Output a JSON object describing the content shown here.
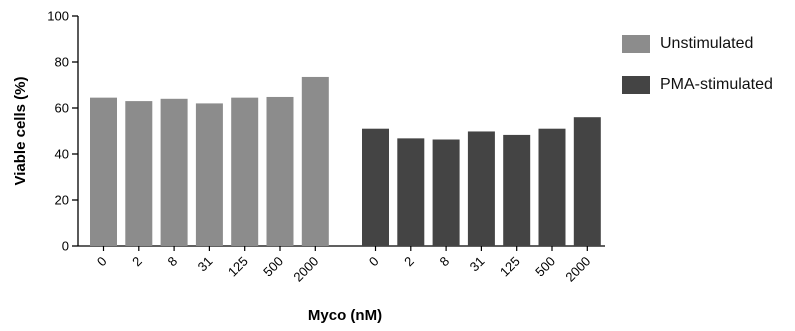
{
  "chart_data": {
    "type": "bar",
    "xlabel": "Myco (nM)",
    "ylabel": "Viable cells (%)",
    "ylim": [
      0,
      100
    ],
    "yticks": [
      0,
      20,
      40,
      60,
      80,
      100
    ],
    "grid": false,
    "legend_position": "right",
    "categories": [
      "0",
      "2",
      "8",
      "31",
      "125",
      "500",
      "2000"
    ],
    "series": [
      {
        "name": "Unstimulated",
        "color": "#8c8c8c",
        "values": [
          64.5,
          63,
          64,
          62,
          64.5,
          64.8,
          73.5
        ]
      },
      {
        "name": "PMA-stimulated",
        "color": "#444444",
        "values": [
          51,
          46.8,
          46.3,
          49.8,
          48.3,
          51,
          56
        ]
      }
    ]
  }
}
